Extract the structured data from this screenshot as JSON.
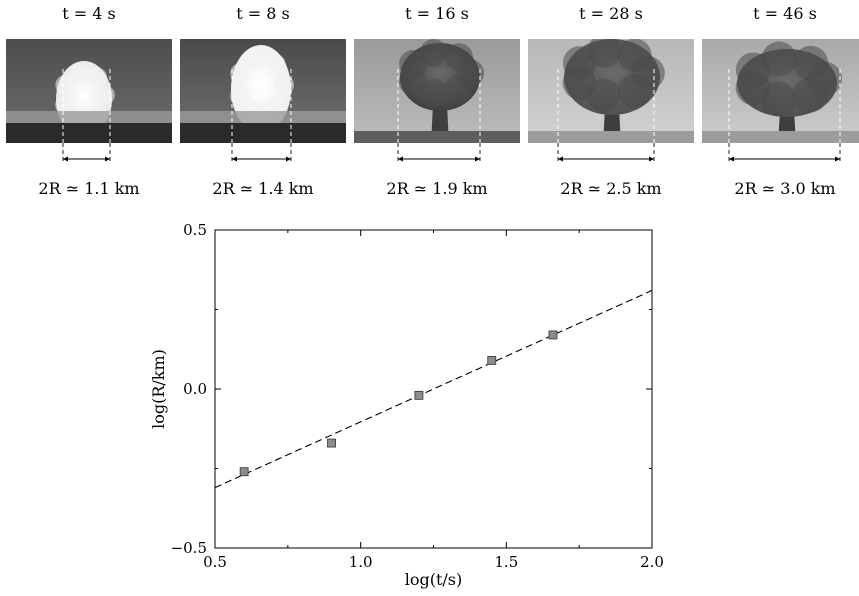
{
  "photos": [
    {
      "time": "t = 4 s",
      "size": "2R ≃ 1.1 km"
    },
    {
      "time": "t = 8 s",
      "size": "2R ≃ 1.4 km"
    },
    {
      "time": "t = 16 s",
      "size": "2R ≃ 1.9 km"
    },
    {
      "time": "t = 28 s",
      "size": "2R ≃ 2.5 km"
    },
    {
      "time": "t = 46 s",
      "size": "2R ≃ 3.0 km"
    }
  ],
  "chart_data": {
    "type": "scatter",
    "title": "",
    "xlabel": "log(t/s)",
    "ylabel": "log(R/km)",
    "xlim": [
      0.5,
      2.0
    ],
    "ylim": [
      -0.5,
      0.5
    ],
    "xticks": [
      "0.5",
      "1.0",
      "1.5",
      "2.0"
    ],
    "yticks": [
      "−0.5",
      "0.0",
      "0.5"
    ],
    "grid": false,
    "series": [
      {
        "type": "scatter",
        "marker": "square",
        "color": "#8c8c8c",
        "x": [
          0.6,
          0.9,
          1.2,
          1.45,
          1.66
        ],
        "y": [
          -0.26,
          -0.17,
          -0.02,
          0.09,
          0.17
        ]
      },
      {
        "type": "line",
        "style": "dashed",
        "color": "#000000",
        "x": [
          0.5,
          2.0
        ],
        "y": [
          -0.31,
          0.31
        ]
      }
    ]
  }
}
